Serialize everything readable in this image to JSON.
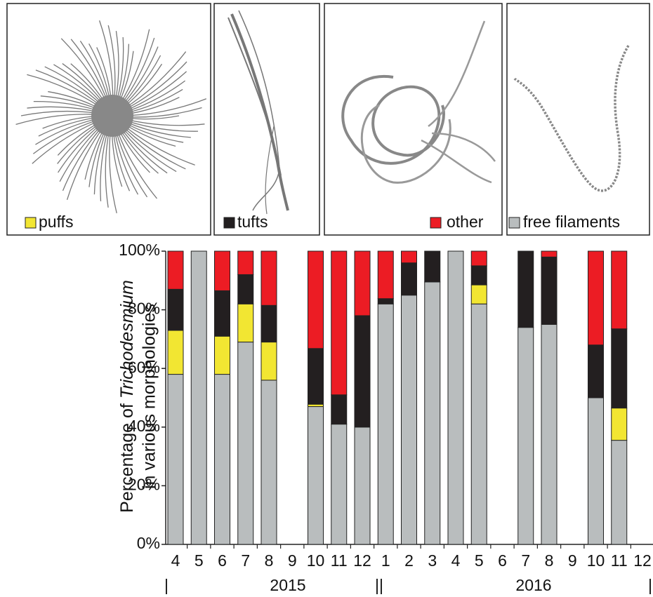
{
  "chart_data": {
    "type": "stacked_bar",
    "y_label": {
      "prefix": "Percentage of",
      "italic": "Trichodesmium",
      "line2": "in various morphologies"
    },
    "categories": [
      "4",
      "5",
      "6",
      "7",
      "8",
      "9",
      "10",
      "11",
      "12",
      "1",
      "2",
      "3",
      "4",
      "5",
      "6",
      "7",
      "8",
      "9",
      "10",
      "11",
      "12"
    ],
    "x_groups": [
      "|",
      "2015",
      "||",
      "2016",
      "|"
    ],
    "series": [
      {
        "name": "free filaments",
        "color": "#b9bdbe",
        "values": [
          58,
          100,
          58,
          69,
          56,
          null,
          47,
          41,
          40,
          82,
          85,
          89.5,
          100,
          82,
          null,
          74,
          75,
          null,
          50,
          35.5,
          null
        ]
      },
      {
        "name": "puffs",
        "color": "#f2e632",
        "values": [
          15,
          null,
          13,
          13,
          13,
          null,
          0.8,
          null,
          null,
          null,
          null,
          null,
          null,
          6.5,
          null,
          null,
          null,
          null,
          null,
          11,
          null
        ]
      },
      {
        "name": "tufts",
        "color": "#231f20",
        "values": [
          14,
          null,
          15.5,
          10,
          12.5,
          null,
          19,
          10,
          38,
          1.8,
          11,
          10.5,
          null,
          6.5,
          null,
          26,
          23,
          null,
          18,
          27,
          null
        ]
      },
      {
        "name": "other",
        "color": "#ec1c24",
        "values": [
          13,
          null,
          13.5,
          8,
          18.5,
          null,
          33.2,
          49,
          22,
          16.2,
          4,
          null,
          null,
          5,
          null,
          null,
          2,
          null,
          32,
          26.5,
          null
        ]
      }
    ],
    "ylim": [
      0,
      100
    ],
    "yticks": [
      {
        "value": 0,
        "label": "0%"
      },
      {
        "value": 20,
        "label": "20%"
      },
      {
        "value": 40,
        "label": "40%"
      },
      {
        "value": 60,
        "label": "60%"
      },
      {
        "value": 80,
        "label": "80%"
      },
      {
        "value": 100,
        "label": "100%"
      }
    ]
  }
}
